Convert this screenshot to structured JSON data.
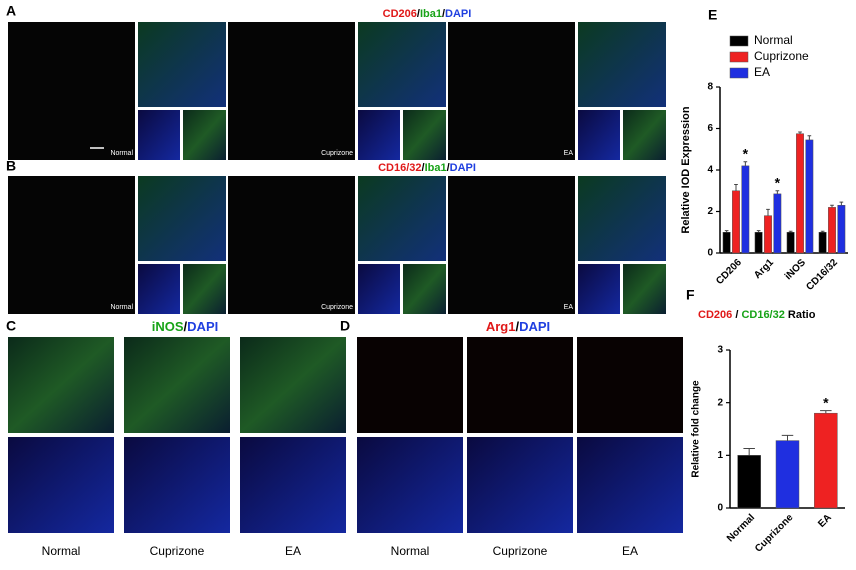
{
  "panels": {
    "A": {
      "label": "A",
      "title": [
        "CD206",
        "/",
        "Iba1",
        "/",
        "DAPI"
      ],
      "conditions": [
        "Normal",
        "Cuprizone",
        "EA"
      ]
    },
    "B": {
      "label": "B",
      "title": [
        "CD16/32",
        "/",
        "Iba1",
        "/",
        "DAPI"
      ],
      "conditions": [
        "Normal",
        "Cuprizone",
        "EA"
      ]
    },
    "C": {
      "label": "C",
      "title": [
        "iNOS",
        "/",
        "DAPI"
      ],
      "conditions": [
        "Normal",
        "Cuprizone",
        "EA"
      ]
    },
    "D": {
      "label": "D",
      "title": [
        "Arg1",
        "/",
        "DAPI"
      ],
      "conditions": [
        "Normal",
        "Cuprizone",
        "EA"
      ]
    }
  },
  "chart_data": [
    {
      "type": "bar",
      "label": "E",
      "ylabel": "Relative IOD Expression",
      "categories": [
        "CD206",
        "Arg1",
        "iNOS",
        "CD16/32"
      ],
      "series": [
        {
          "name": "Normal",
          "color": "#000000",
          "values": [
            1.0,
            1.0,
            1.0,
            1.0
          ],
          "errors": [
            0.08,
            0.08,
            0.05,
            0.05
          ]
        },
        {
          "name": "Cuprizone",
          "color": "#ee2222",
          "values": [
            3.0,
            1.8,
            5.75,
            2.2
          ],
          "errors": [
            0.3,
            0.3,
            0.08,
            0.1
          ]
        },
        {
          "name": "EA",
          "color": "#1f2fe0",
          "values": [
            4.2,
            2.85,
            5.45,
            2.3
          ],
          "errors": [
            0.2,
            0.15,
            0.2,
            0.15
          ],
          "significance": [
            "*",
            "*",
            null,
            null
          ]
        }
      ],
      "ylim": [
        0,
        8
      ],
      "yticks": [
        0,
        2,
        4,
        6,
        8
      ]
    },
    {
      "type": "bar",
      "label": "F",
      "title": [
        "CD206",
        "/",
        "CD16/32",
        "Ratio"
      ],
      "ylabel": "Relative fold change",
      "categories": [
        "Normal",
        "Cuprizone",
        "EA"
      ],
      "values": [
        1.0,
        1.28,
        1.8
      ],
      "errors": [
        0.13,
        0.1,
        0.05
      ],
      "colors": [
        "#000000",
        "#1f2fe0",
        "#ee2222"
      ],
      "significance": [
        null,
        null,
        "*"
      ],
      "ylim": [
        0,
        3
      ],
      "yticks": [
        0,
        1,
        2,
        3
      ]
    }
  ]
}
